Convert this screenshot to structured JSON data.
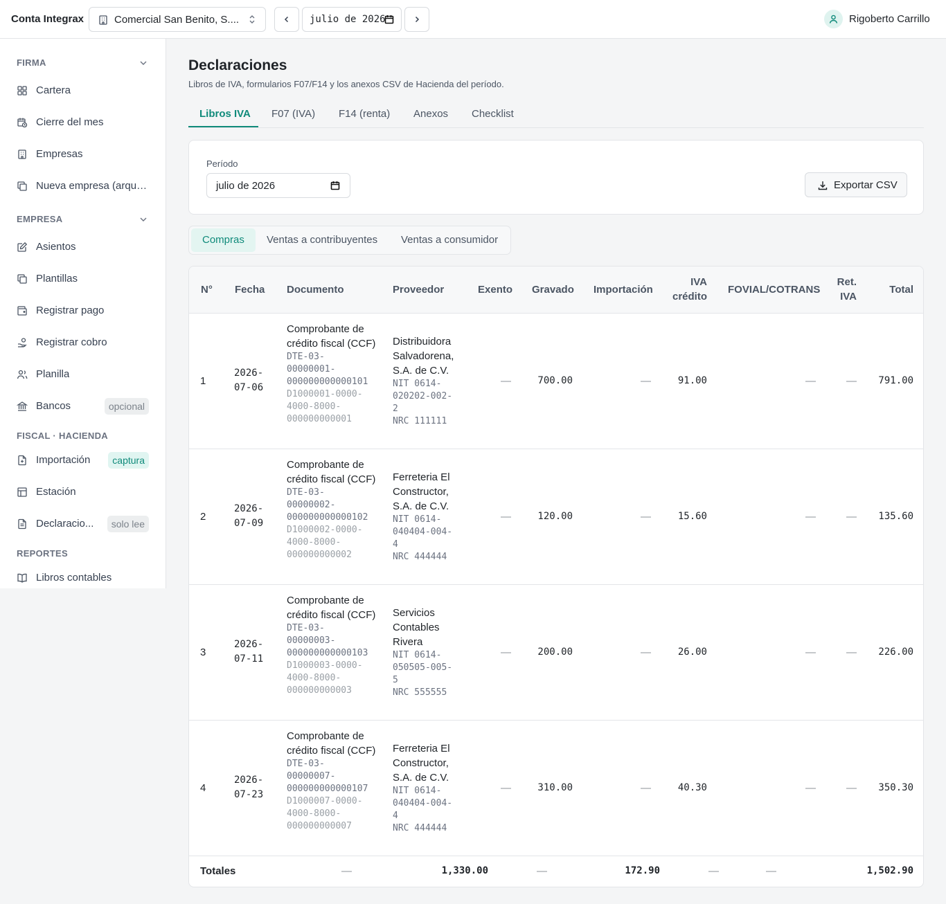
{
  "app": {
    "brand": "Conta Integrax",
    "company": "Comercial San Benito, S....",
    "month": "julio de 2026",
    "user": "Rigoberto Carrillo"
  },
  "sidebar": {
    "sections": [
      {
        "title": "FIRMA",
        "items": [
          {
            "label": "Cartera",
            "icon": "grid-icon"
          },
          {
            "label": "Cierre del mes",
            "icon": "calendar-icon"
          },
          {
            "label": "Empresas",
            "icon": "building-icon"
          },
          {
            "label": "Nueva empresa (arque...",
            "icon": "copy-icon"
          }
        ]
      },
      {
        "title": "EMPRESA",
        "items": [
          {
            "label": "Asientos",
            "icon": "edit-icon"
          },
          {
            "label": "Plantillas",
            "icon": "copy-icon"
          },
          {
            "label": "Registrar pago",
            "icon": "wallet-icon"
          },
          {
            "label": "Registrar cobro",
            "icon": "hand-coins-icon"
          },
          {
            "label": "Planilla",
            "icon": "users-icon"
          },
          {
            "label": "Bancos",
            "icon": "bank-icon",
            "badge": "opcional"
          }
        ]
      },
      {
        "title": "FISCAL · HACIENDA",
        "items": [
          {
            "label": "Importación",
            "icon": "file-import-icon",
            "badge": "captura"
          },
          {
            "label": "Estación",
            "icon": "table-icon"
          },
          {
            "label": "Declaracio...",
            "icon": "file-text-icon",
            "badge": "solo lee"
          }
        ]
      },
      {
        "title": "REPORTES",
        "items": [
          {
            "label": "Libros contables",
            "icon": "book-icon"
          }
        ]
      }
    ]
  },
  "page": {
    "title": "Declaraciones",
    "subtitle": "Libros de IVA, formularios F07/F14 y los anexos CSV de Hacienda del período."
  },
  "tabs": [
    "Libros IVA",
    "F07 (IVA)",
    "F14 (renta)",
    "Anexos",
    "Checklist"
  ],
  "filter": {
    "period_label": "Período",
    "period_value": "julio de 2026",
    "export_label": "Exportar CSV"
  },
  "segments": [
    "Compras",
    "Ventas a contribuyentes",
    "Ventas a consumidor"
  ],
  "table": {
    "headers": {
      "n": "N°",
      "fecha": "Fecha",
      "documento": "Documento",
      "proveedor": "Proveedor",
      "exento": "Exento",
      "gravado": "Gravado",
      "importacion": "Importación",
      "iva1": "IVA",
      "iva2": "crédito",
      "fovial": "FOVIAL/COTRANS",
      "ret1": "Ret.",
      "ret2": "IVA",
      "total": "Total"
    },
    "rows": [
      {
        "n": "1",
        "fecha1": "2026-",
        "fecha2": "07-06",
        "doc_type": "Comprobante de crédito fiscal (CCF)",
        "doc_num": "DTE-03-\n00000001-\n000000000000101",
        "doc_code": "D1000001-0000-\n4000-8000-\n000000000001",
        "prov_name": "Distribuidora Salvadorena, S.A. de C.V.",
        "prov_ids": "NIT 0614-\n020202-002-\n2\nNRC 111111",
        "exento": "—",
        "gravado": "700.00",
        "importacion": "—",
        "iva": "91.00",
        "fovial": "—",
        "ret": "—",
        "total": "791.00"
      },
      {
        "n": "2",
        "fecha1": "2026-",
        "fecha2": "07-09",
        "doc_type": "Comprobante de crédito fiscal (CCF)",
        "doc_num": "DTE-03-\n00000002-\n000000000000102",
        "doc_code": "D1000002-0000-\n4000-8000-\n000000000002",
        "prov_name": "Ferreteria El Constructor, S.A. de C.V.",
        "prov_ids": "NIT 0614-\n040404-004-\n4\nNRC 444444",
        "exento": "—",
        "gravado": "120.00",
        "importacion": "—",
        "iva": "15.60",
        "fovial": "—",
        "ret": "—",
        "total": "135.60"
      },
      {
        "n": "3",
        "fecha1": "2026-",
        "fecha2": "07-11",
        "doc_type": "Comprobante de crédito fiscal (CCF)",
        "doc_num": "DTE-03-\n00000003-\n000000000000103",
        "doc_code": "D1000003-0000-\n4000-8000-\n000000000003",
        "prov_name": "Servicios Contables Rivera",
        "prov_ids": "NIT 0614-\n050505-005-\n5\nNRC 555555",
        "exento": "—",
        "gravado": "200.00",
        "importacion": "—",
        "iva": "26.00",
        "fovial": "—",
        "ret": "—",
        "total": "226.00"
      },
      {
        "n": "4",
        "fecha1": "2026-",
        "fecha2": "07-23",
        "doc_type": "Comprobante de crédito fiscal (CCF)",
        "doc_num": "DTE-03-\n00000007-\n000000000000107",
        "doc_code": "D1000007-0000-\n4000-8000-\n000000000007",
        "prov_name": "Ferreteria El Constructor, S.A. de C.V.",
        "prov_ids": "NIT 0614-\n040404-004-\n4\nNRC 444444",
        "exento": "—",
        "gravado": "310.00",
        "importacion": "—",
        "iva": "40.30",
        "fovial": "—",
        "ret": "—",
        "total": "350.30"
      }
    ],
    "totals": {
      "label": "Totales",
      "exento": "—",
      "gravado": "1,330.00",
      "importacion": "—",
      "iva": "172.90",
      "fovial": "—",
      "ret": "—",
      "total": "1,502.90"
    }
  }
}
